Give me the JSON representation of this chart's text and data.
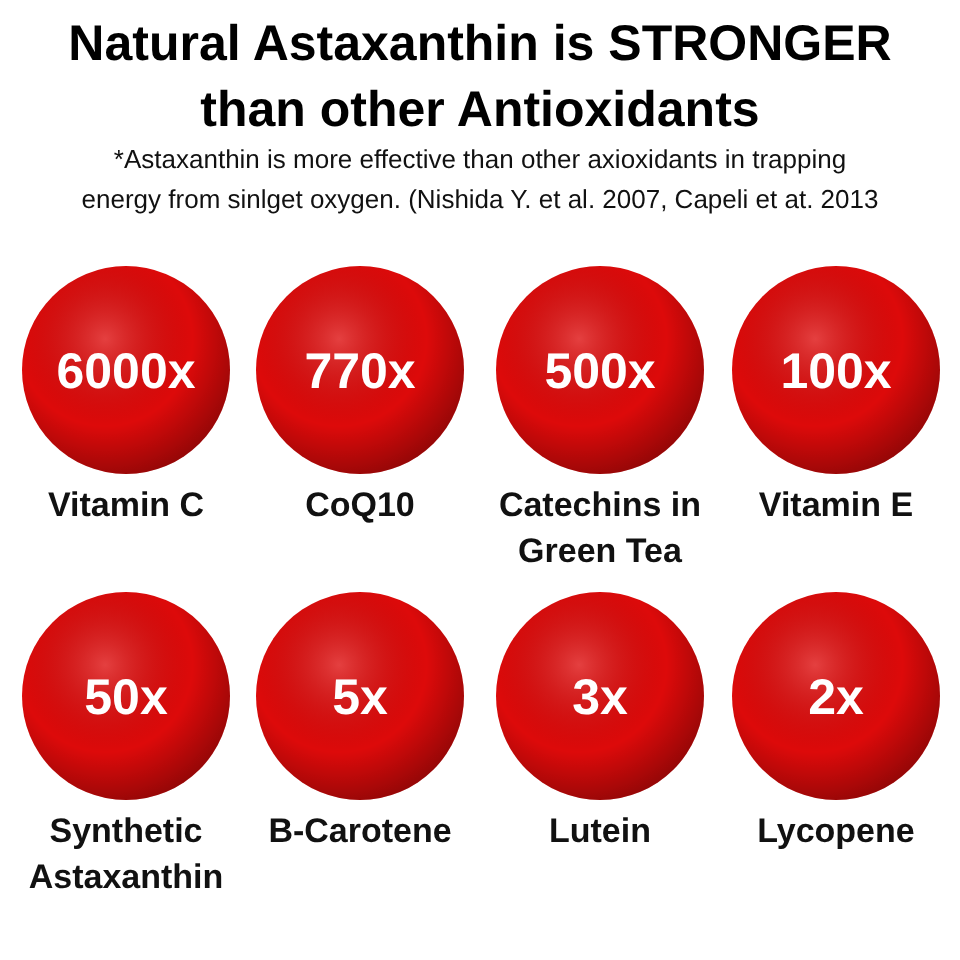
{
  "chart_data": {
    "type": "other",
    "title": "Natural Astaxanthin is STRONGER than other Antioxidants",
    "subtitle": "*Astaxanthin is more effective than other axioxidants in trapping energy from sinlget oxygen. (Nishida Y. et al. 2007, Capeli et at. 2013",
    "categories": [
      "Vitamin C",
      "CoQ10",
      "Catechins in Green Tea",
      "Vitamin E",
      "Synthetic Astaxanthin",
      "B-Carotene",
      "Lutein",
      "Lycopene"
    ],
    "values": [
      6000,
      770,
      500,
      100,
      50,
      5,
      3,
      2
    ],
    "value_labels": [
      "6000x",
      "770x",
      "500x",
      "100x",
      "50x",
      "5x",
      "3x",
      "2x"
    ],
    "color": "#dd0a0a"
  }
}
